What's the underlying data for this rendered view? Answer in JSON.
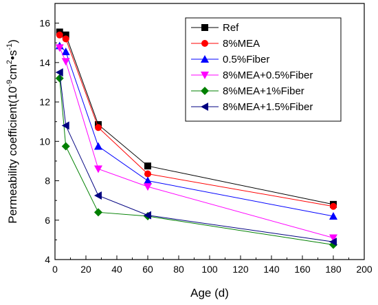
{
  "chart_data": {
    "type": "line",
    "xlabel": "Age (d)",
    "ylabel": {
      "main": "Permeability coefficient(10",
      "exp1": "-9",
      "mid": "cm",
      "exp2": "2",
      "dot": "•s",
      "exp3": "-1",
      "end": ")"
    },
    "xlim": [
      0,
      200
    ],
    "ylim": [
      4,
      17
    ],
    "x_ticks": [
      0,
      20,
      40,
      60,
      80,
      100,
      120,
      140,
      160,
      180,
      200
    ],
    "y_ticks": [
      4,
      6,
      8,
      10,
      12,
      14,
      16
    ],
    "x_tick_labels": [
      "0",
      "20",
      "40",
      "60",
      "80",
      "100",
      "120",
      "140",
      "160",
      "180",
      "200"
    ],
    "y_tick_labels": [
      "4",
      "6",
      "8",
      "10",
      "12",
      "14",
      "16"
    ],
    "x": [
      3,
      7,
      28,
      60,
      180
    ],
    "legend_position": "top-right",
    "grid": false,
    "series": [
      {
        "name": "Ref",
        "color": "#000000",
        "marker": "square",
        "values": [
          15.55,
          15.4,
          10.85,
          8.75,
          6.8
        ]
      },
      {
        "name": "8%MEA",
        "color": "#ff0000",
        "marker": "circle",
        "values": [
          15.4,
          15.2,
          10.7,
          8.35,
          6.7
        ]
      },
      {
        "name": "0.5%Fiber",
        "color": "#0000ff",
        "marker": "triangle-up",
        "values": [
          14.85,
          14.55,
          9.75,
          8.0,
          6.2
        ]
      },
      {
        "name": "8%MEA+0.5%Fiber",
        "color": "#ff00ff",
        "marker": "triangle-down",
        "values": [
          14.75,
          14.05,
          8.6,
          7.7,
          5.1
        ]
      },
      {
        "name": "8%MEA+1%Fiber",
        "color": "#008000",
        "marker": "diamond",
        "values": [
          13.2,
          9.75,
          6.4,
          6.2,
          4.75
        ]
      },
      {
        "name": "8%MEA+1.5%Fiber",
        "color": "#000080",
        "marker": "triangle-left",
        "values": [
          13.5,
          10.8,
          7.25,
          6.25,
          4.9
        ]
      }
    ]
  }
}
